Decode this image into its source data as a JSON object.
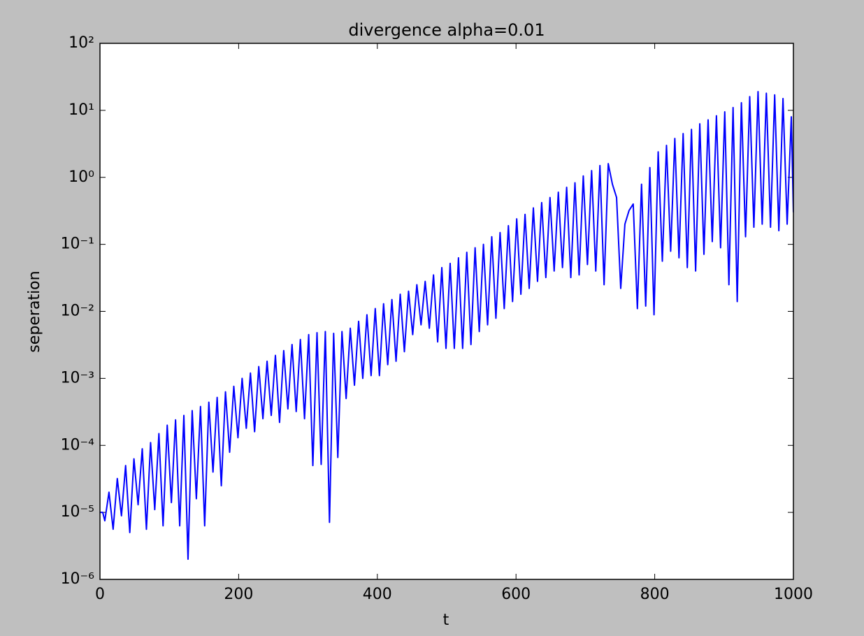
{
  "chart_data": {
    "type": "line",
    "title": "divergence alpha=0.01",
    "x_label": "t",
    "y_label": "seperation",
    "log_y": true,
    "color": "#0000ff",
    "xlim": [
      0,
      1000
    ],
    "xticks": [
      0,
      200,
      400,
      600,
      800,
      1000
    ],
    "ylim": [
      1e-06,
      100
    ],
    "yticks": [
      {
        "value": 1e-06,
        "label": "10⁻⁶"
      },
      {
        "value": 1e-05,
        "label": "10⁻⁵"
      },
      {
        "value": 0.0001,
        "label": "10⁻⁴"
      },
      {
        "value": 0.001,
        "label": "10⁻³"
      },
      {
        "value": 0.01,
        "label": "10⁻²"
      },
      {
        "value": 0.1,
        "label": "10⁻¹"
      },
      {
        "value": 1,
        "label": "10⁰"
      },
      {
        "value": 10,
        "label": "10¹"
      },
      {
        "value": 100,
        "label": "10²"
      }
    ],
    "x": [
      0,
      4,
      7,
      13,
      19,
      25,
      31,
      37,
      43,
      49,
      55,
      61,
      67,
      73,
      79,
      85,
      91,
      97,
      103,
      109,
      115,
      121,
      127,
      133,
      139,
      145,
      151,
      157,
      163,
      169,
      175,
      181,
      187,
      193,
      199,
      205,
      211,
      217,
      223,
      229,
      235,
      241,
      247,
      253,
      259,
      265,
      271,
      277,
      283,
      289,
      295,
      301,
      307,
      313,
      319,
      325,
      331,
      337,
      343,
      349,
      355,
      361,
      367,
      373,
      379,
      385,
      391,
      397,
      403,
      409,
      415,
      421,
      427,
      433,
      439,
      445,
      451,
      457,
      463,
      469,
      475,
      481,
      487,
      493,
      499,
      505,
      511,
      517,
      523,
      529,
      535,
      541,
      547,
      553,
      559,
      565,
      571,
      577,
      583,
      589,
      595,
      601,
      607,
      613,
      619,
      625,
      631,
      637,
      643,
      649,
      655,
      661,
      667,
      673,
      679,
      685,
      691,
      697,
      703,
      709,
      715,
      721,
      727,
      733,
      739,
      745,
      751,
      757,
      763,
      769,
      775,
      781,
      787,
      793,
      799,
      805,
      811,
      817,
      823,
      829,
      835,
      841,
      847,
      853,
      859,
      865,
      871,
      877,
      883,
      889,
      895,
      901,
      907,
      913,
      919,
      925,
      931,
      937,
      943,
      949,
      955,
      961,
      967,
      973,
      979,
      985,
      991,
      997,
      1000
    ],
    "values": [
      1e-05,
      1e-05,
      7.5e-06,
      2e-05,
      5.6e-06,
      3.2e-05,
      8.9e-06,
      5e-05,
      5e-06,
      6.3e-05,
      1.3e-05,
      8.9e-05,
      5.6e-06,
      0.00011,
      1.1e-05,
      0.00015,
      6.3e-06,
      0.0002,
      1.4e-05,
      0.00024,
      6.3e-06,
      0.00028,
      2e-06,
      0.00033,
      1.6e-05,
      0.00038,
      6.3e-06,
      0.00044,
      4e-05,
      0.00052,
      2.5e-05,
      0.00063,
      7.9e-05,
      0.00076,
      0.00013,
      0.001,
      0.00018,
      0.0012,
      0.00016,
      0.0015,
      0.00025,
      0.0018,
      0.00028,
      0.0022,
      0.00022,
      0.0026,
      0.00035,
      0.0032,
      0.00032,
      0.0038,
      0.00025,
      0.0045,
      5e-05,
      0.0048,
      5.2e-05,
      0.005,
      7.1e-06,
      0.0047,
      6.6e-05,
      0.005,
      0.0005,
      0.0056,
      0.00079,
      0.0071,
      0.001,
      0.0089,
      0.0011,
      0.011,
      0.0011,
      0.013,
      0.0016,
      0.015,
      0.0018,
      0.018,
      0.0025,
      0.02,
      0.0045,
      0.025,
      0.0063,
      0.028,
      0.0056,
      0.035,
      0.0035,
      0.045,
      0.0028,
      0.052,
      0.0028,
      0.063,
      0.0028,
      0.076,
      0.0032,
      0.089,
      0.005,
      0.1,
      0.0063,
      0.13,
      0.0079,
      0.15,
      0.011,
      0.19,
      0.014,
      0.24,
      0.018,
      0.28,
      0.022,
      0.35,
      0.028,
      0.42,
      0.032,
      0.5,
      0.04,
      0.6,
      0.045,
      0.71,
      0.032,
      0.83,
      0.035,
      1.05,
      0.05,
      1.26,
      0.04,
      1.5,
      0.025,
      1.6,
      0.79,
      0.5,
      0.022,
      0.2,
      0.32,
      0.4,
      0.011,
      0.79,
      0.012,
      1.4,
      0.0089,
      2.4,
      0.056,
      3,
      0.079,
      3.8,
      0.063,
      4.5,
      0.045,
      5.2,
      0.04,
      6.3,
      0.071,
      7.2,
      0.11,
      8.3,
      0.089,
      9.5,
      0.025,
      11,
      0.014,
      13,
      0.13,
      16,
      0.18,
      19,
      0.2,
      18,
      0.18,
      17,
      0.16,
      15,
      0.2,
      8,
      0.3
    ]
  }
}
